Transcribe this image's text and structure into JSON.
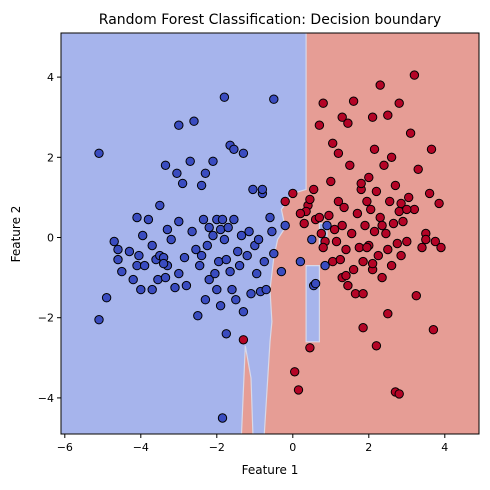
{
  "chart_data": {
    "type": "scatter",
    "title": "Random Forest Classification: Decision boundary",
    "xlabel": "Feature 1",
    "ylabel": "Feature 2",
    "xlim": [
      -6.1,
      4.9
    ],
    "ylim": [
      -4.9,
      5.1
    ],
    "xticks": [
      -6,
      -4,
      -2,
      0,
      2,
      4
    ],
    "yticks": [
      -4,
      -2,
      0,
      2,
      4
    ],
    "grid": false,
    "legend": "none",
    "region_colors": {
      "class_0": "#a6b4ec",
      "class_1": "#e69d95",
      "boundary": "#d8d8e8"
    },
    "decision_regions": {
      "class_0": [
        [
          -6.1,
          5.1
        ],
        [
          0.35,
          5.1
        ],
        [
          0.35,
          1.2
        ],
        [
          0.0,
          1.1
        ],
        [
          -0.3,
          0.7
        ],
        [
          -0.2,
          0.25
        ],
        [
          -0.4,
          -0.05
        ],
        [
          -0.5,
          -0.5
        ],
        [
          -0.6,
          -1.3
        ],
        [
          -0.55,
          -2.1
        ],
        [
          -0.6,
          -2.6
        ],
        [
          -0.75,
          -4.9
        ],
        [
          -1.05,
          -4.9
        ],
        [
          -1.1,
          -3.5
        ],
        [
          -1.25,
          -2.7
        ],
        [
          -1.35,
          -4.9
        ],
        [
          -6.1,
          -4.9
        ]
      ],
      "class_0_islands": [
        [
          [
            0.35,
            -0.7
          ],
          [
            0.7,
            -0.7
          ],
          [
            0.7,
            -2.6
          ],
          [
            0.35,
            -2.6
          ]
        ],
        [
          [
            0.7,
            0.35
          ],
          [
            0.9,
            0.35
          ],
          [
            0.9,
            -0.2
          ],
          [
            0.7,
            -0.2
          ]
        ]
      ]
    },
    "series": [
      {
        "color": "#3a4cc0",
        "points": [
          [
            -5.1,
            2.1
          ],
          [
            -5.1,
            -2.05
          ],
          [
            -4.9,
            -1.5
          ],
          [
            -4.7,
            -0.1
          ],
          [
            -4.6,
            -0.55
          ],
          [
            -4.5,
            -0.85
          ],
          [
            -4.3,
            -0.35
          ],
          [
            -4.2,
            -1.05
          ],
          [
            -4.1,
            0.5
          ],
          [
            -4.1,
            -0.7
          ],
          [
            -4.05,
            -0.45
          ],
          [
            -4.0,
            -1.3
          ],
          [
            -3.95,
            0.05
          ],
          [
            -3.9,
            -0.7
          ],
          [
            -3.8,
            0.45
          ],
          [
            -3.7,
            -0.2
          ],
          [
            -3.6,
            -0.55
          ],
          [
            -3.55,
            -1.05
          ],
          [
            -3.5,
            -0.45
          ],
          [
            -3.5,
            0.8
          ],
          [
            -3.4,
            -0.5
          ],
          [
            -3.35,
            -1.0
          ],
          [
            -3.35,
            1.8
          ],
          [
            -3.3,
            0.2
          ],
          [
            -3.3,
            -0.7
          ],
          [
            -3.2,
            -0.05
          ],
          [
            -3.1,
            -1.25
          ],
          [
            -3.05,
            1.6
          ],
          [
            -3.0,
            0.4
          ],
          [
            -3.0,
            -0.9
          ],
          [
            -3.0,
            2.8
          ],
          [
            -2.9,
            1.35
          ],
          [
            -2.85,
            -0.5
          ],
          [
            -2.8,
            -1.2
          ],
          [
            -2.7,
            1.9
          ],
          [
            -2.65,
            0.15
          ],
          [
            -2.6,
            2.9
          ],
          [
            -2.55,
            -0.3
          ],
          [
            -2.5,
            -1.95
          ],
          [
            -2.45,
            -0.7
          ],
          [
            -2.4,
            1.3
          ],
          [
            -2.4,
            -0.45
          ],
          [
            -2.35,
            0.45
          ],
          [
            -2.3,
            1.6
          ],
          [
            -2.3,
            -1.55
          ],
          [
            -2.25,
            -0.2
          ],
          [
            -2.2,
            0.25
          ],
          [
            -2.2,
            -1.05
          ],
          [
            -2.1,
            1.9
          ],
          [
            -2.1,
            0.05
          ],
          [
            -2.05,
            -0.9
          ],
          [
            -2.0,
            0.45
          ],
          [
            -2.0,
            -1.3
          ],
          [
            -1.95,
            -0.6
          ],
          [
            -1.9,
            0.2
          ],
          [
            -1.9,
            -1.7
          ],
          [
            -1.85,
            0.45
          ],
          [
            -1.8,
            -0.05
          ],
          [
            -1.75,
            -0.55
          ],
          [
            -1.75,
            -2.4
          ],
          [
            -1.7,
            0.25
          ],
          [
            -1.65,
            -0.85
          ],
          [
            -1.6,
            -1.3
          ],
          [
            -1.55,
            0.45
          ],
          [
            -1.5,
            -1.55
          ],
          [
            -1.45,
            -0.35
          ],
          [
            -1.4,
            -0.7
          ],
          [
            -1.35,
            0.05
          ],
          [
            -1.3,
            2.1
          ],
          [
            -1.3,
            -1.85
          ],
          [
            -1.2,
            -0.45
          ],
          [
            -1.15,
            0.15
          ],
          [
            -1.1,
            -1.4
          ],
          [
            -1.05,
            1.2
          ],
          [
            -1.0,
            -0.2
          ],
          [
            -0.95,
            -0.9
          ],
          [
            -0.9,
            -0.05
          ],
          [
            -0.85,
            -1.35
          ],
          [
            -0.8,
            1.1
          ],
          [
            -0.75,
            -0.6
          ],
          [
            -0.7,
            -1.3
          ],
          [
            -0.6,
            0.5
          ],
          [
            -0.55,
            0.15
          ],
          [
            -0.5,
            -0.4
          ],
          [
            -1.8,
            3.5
          ],
          [
            -1.65,
            2.3
          ],
          [
            -1.55,
            2.2
          ],
          [
            -0.5,
            3.45
          ],
          [
            -1.85,
            -4.5
          ],
          [
            0.2,
            -0.6
          ],
          [
            0.5,
            -0.05
          ],
          [
            -0.3,
            -0.85
          ],
          [
            -0.2,
            0.3
          ],
          [
            0.55,
            -1.2
          ],
          [
            0.6,
            -1.15
          ],
          [
            0.85,
            -0.7
          ],
          [
            0.9,
            0.3
          ],
          [
            -0.8,
            1.2
          ],
          [
            -3.4,
            -0.65
          ],
          [
            -4.6,
            -0.3
          ],
          [
            -3.7,
            -1.3
          ]
        ]
      },
      {
        "color": "#b40426",
        "points": [
          [
            -1.3,
            -2.55
          ],
          [
            0.0,
            1.1
          ],
          [
            -0.2,
            0.9
          ],
          [
            0.4,
            0.8
          ],
          [
            0.55,
            1.2
          ],
          [
            0.6,
            0.45
          ],
          [
            0.7,
            0.5
          ],
          [
            0.75,
            0.1
          ],
          [
            0.85,
            -0.1
          ],
          [
            0.95,
            0.55
          ],
          [
            1.0,
            1.4
          ],
          [
            1.05,
            -0.6
          ],
          [
            1.1,
            0.2
          ],
          [
            1.15,
            -0.1
          ],
          [
            1.2,
            0.9
          ],
          [
            1.25,
            -0.55
          ],
          [
            1.3,
            0.3
          ],
          [
            1.3,
            -1.0
          ],
          [
            1.35,
            0.75
          ],
          [
            1.4,
            -0.3
          ],
          [
            1.45,
            -1.2
          ],
          [
            1.5,
            1.8
          ],
          [
            1.55,
            0.1
          ],
          [
            1.6,
            -0.8
          ],
          [
            1.65,
            -1.4
          ],
          [
            1.7,
            0.6
          ],
          [
            1.75,
            -0.25
          ],
          [
            1.8,
            1.2
          ],
          [
            1.85,
            -0.6
          ],
          [
            1.9,
            0.3
          ],
          [
            1.95,
            0.9
          ],
          [
            2.0,
            -0.2
          ],
          [
            2.0,
            1.5
          ],
          [
            2.05,
            0.7
          ],
          [
            2.1,
            -0.8
          ],
          [
            2.15,
            0.15
          ],
          [
            2.2,
            1.15
          ],
          [
            2.25,
            -0.45
          ],
          [
            2.3,
            0.5
          ],
          [
            2.35,
            -1.0
          ],
          [
            2.4,
            1.8
          ],
          [
            2.45,
            0.1
          ],
          [
            2.5,
            -0.3
          ],
          [
            2.55,
            0.9
          ],
          [
            2.6,
            -0.7
          ],
          [
            2.65,
            0.35
          ],
          [
            2.7,
            1.3
          ],
          [
            2.75,
            -0.15
          ],
          [
            2.8,
            0.65
          ],
          [
            2.85,
            -0.45
          ],
          [
            2.9,
            0.4
          ],
          [
            3.0,
            -0.1
          ],
          [
            3.05,
            1.0
          ],
          [
            3.1,
            2.6
          ],
          [
            3.2,
            0.7
          ],
          [
            3.2,
            4.05
          ],
          [
            3.25,
            -1.45
          ],
          [
            3.3,
            1.7
          ],
          [
            3.4,
            -0.25
          ],
          [
            3.5,
            0.1
          ],
          [
            3.6,
            1.1
          ],
          [
            3.65,
            2.2
          ],
          [
            3.7,
            -2.3
          ],
          [
            3.75,
            -0.1
          ],
          [
            3.85,
            0.85
          ],
          [
            3.9,
            -0.25
          ],
          [
            0.8,
            3.35
          ],
          [
            1.6,
            3.4
          ],
          [
            1.8,
            1.35
          ],
          [
            0.7,
            2.8
          ],
          [
            1.05,
            2.35
          ],
          [
            1.2,
            2.1
          ],
          [
            1.3,
            3.0
          ],
          [
            2.1,
            3.0
          ],
          [
            2.15,
            2.2
          ],
          [
            2.3,
            3.8
          ],
          [
            2.5,
            3.05
          ],
          [
            2.8,
            3.35
          ],
          [
            1.45,
            2.85
          ],
          [
            1.85,
            -2.25
          ],
          [
            2.2,
            -2.7
          ],
          [
            2.7,
            -3.85
          ],
          [
            2.8,
            -3.9
          ],
          [
            0.05,
            -3.35
          ],
          [
            0.15,
            -3.8
          ],
          [
            0.45,
            -2.75
          ],
          [
            2.5,
            -1.9
          ],
          [
            1.85,
            -1.4
          ],
          [
            1.4,
            -0.95
          ],
          [
            0.3,
            0.35
          ],
          [
            0.35,
            0.65
          ],
          [
            0.2,
            0.6
          ],
          [
            0.45,
            0.95
          ],
          [
            0.8,
            -0.25
          ],
          [
            1.95,
            -0.25
          ],
          [
            2.85,
            0.85
          ],
          [
            3.5,
            -0.05
          ],
          [
            2.6,
            2.0
          ],
          [
            3.0,
            0.7
          ],
          [
            2.1,
            -0.65
          ],
          [
            2.35,
            0.3
          ]
        ]
      }
    ]
  }
}
